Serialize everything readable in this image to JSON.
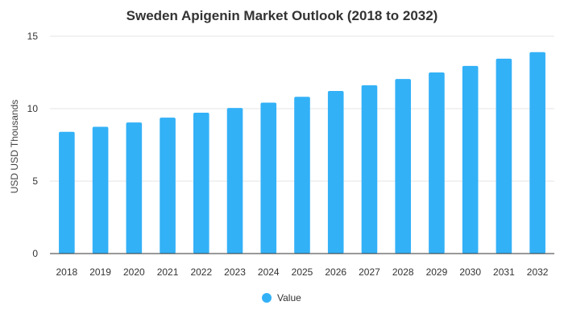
{
  "chart_data": {
    "type": "bar",
    "title": "Sweden Apigenin Market Outlook (2018 to 2032)",
    "xlabel": "",
    "ylabel": "USD USD Thousands",
    "categories": [
      "2018",
      "2019",
      "2020",
      "2021",
      "2022",
      "2023",
      "2024",
      "2025",
      "2026",
      "2027",
      "2028",
      "2029",
      "2030",
      "2031",
      "2032"
    ],
    "series": [
      {
        "name": "Value",
        "values": [
          8.4,
          8.75,
          9.05,
          9.38,
          9.72,
          10.05,
          10.42,
          10.82,
          11.22,
          11.62,
          12.05,
          12.5,
          12.95,
          13.45,
          13.9
        ]
      }
    ],
    "ylim": [
      0,
      15
    ],
    "yticks": [
      0,
      5,
      10,
      15
    ],
    "grid": true,
    "legend_position": "bottom-center",
    "colors": {
      "bar": "#33b1f7",
      "grid": "#e6e6e6",
      "text": "#333333"
    }
  }
}
